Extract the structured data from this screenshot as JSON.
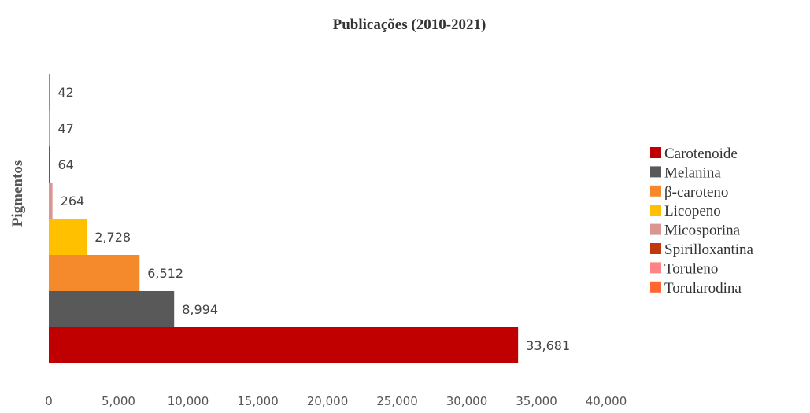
{
  "chart_data": {
    "type": "bar",
    "orientation": "horizontal",
    "title": "Publicações (2010-2021)",
    "ylabel": "Pigmentos",
    "xlabel": "",
    "xlim": [
      0,
      40000
    ],
    "xticks": [
      "0",
      "5,000",
      "10,000",
      "15,000",
      "20,000",
      "25,000",
      "30,000",
      "35,000",
      "40,000"
    ],
    "grid": false,
    "legend_position": "right",
    "categories": [
      "Carotenoide",
      "Melanina",
      "β-caroteno",
      "Licopeno",
      "Micosporina",
      "Spirilloxantina",
      "Toruleno",
      "Torularodina"
    ],
    "values": [
      33681,
      8994,
      6512,
      2728,
      264,
      64,
      47,
      42
    ],
    "value_labels": [
      "33,681",
      "8,994",
      "6,512",
      "2,728",
      "264",
      "64",
      "47",
      "42"
    ],
    "colors": [
      "#C00000",
      "#595959",
      "#F58A2D",
      "#FFC000",
      "#D99694",
      "#C0390B",
      "#FF8585",
      "#FF6633"
    ]
  }
}
